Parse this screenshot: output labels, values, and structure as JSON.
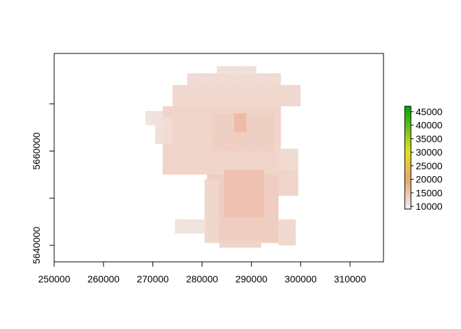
{
  "chart_data": {
    "type": "heatmap",
    "title": "",
    "xlabel": "",
    "ylabel": "",
    "xlim": [
      250000,
      316800
    ],
    "ylim": [
      5636500,
      5680700
    ],
    "x_ticks": [
      250000,
      260000,
      270000,
      280000,
      290000,
      300000,
      310000
    ],
    "x_tick_labels": [
      "250000",
      "260000",
      "270000",
      "280000",
      "290000",
      "300000",
      "310000"
    ],
    "y_ticks": [
      5640000,
      5650000,
      5660000,
      5670000
    ],
    "y_tick_labels": [
      "5640000",
      "",
      "5660000",
      ""
    ],
    "legend": {
      "position": "right",
      "min": 9000,
      "max": 47000,
      "ticks": [
        10000,
        15000,
        20000,
        25000,
        30000,
        35000,
        40000,
        45000
      ],
      "tick_labels": [
        "10000",
        "15000",
        "20000",
        "25000",
        "30000",
        "35000",
        "40000",
        "45000"
      ],
      "color_stops": [
        {
          "value": 9000,
          "color": "#f2f2f2"
        },
        {
          "value": 15000,
          "color": "#eec3b2"
        },
        {
          "value": 20000,
          "color": "#e9a86a"
        },
        {
          "value": 25000,
          "color": "#e6c24a"
        },
        {
          "value": 30000,
          "color": "#e3e31a"
        },
        {
          "value": 35000,
          "color": "#a8d11e"
        },
        {
          "value": 40000,
          "color": "#5ebe16"
        },
        {
          "value": 47000,
          "color": "#00a600"
        }
      ]
    },
    "raster_value_range_approx": [
      10000,
      20000
    ],
    "raster_extent": {
      "regions": [
        {
          "x": [
            274000,
            300000
          ],
          "y": [
            5669500,
            5674000
          ],
          "value": 12000
        },
        {
          "x": [
            277000,
            296000
          ],
          "y": [
            5674000,
            5676500
          ],
          "value": 11500
        },
        {
          "x": [
            283000,
            291000
          ],
          "y": [
            5676500,
            5678000
          ],
          "value": 11000
        },
        {
          "x": [
            272000,
            296000
          ],
          "y": [
            5655000,
            5669500
          ],
          "value": 12500
        },
        {
          "x": [
            270500,
            274000
          ],
          "y": [
            5661500,
            5667000
          ],
          "value": 11000
        },
        {
          "x": [
            268500,
            272000
          ],
          "y": [
            5665500,
            5668500
          ],
          "value": 10500
        },
        {
          "x": [
            295500,
            299500
          ],
          "y": [
            5656000,
            5660500
          ],
          "value": 11500
        },
        {
          "x": [
            281000,
            295500
          ],
          "y": [
            5640500,
            5655000
          ],
          "value": 13500
        },
        {
          "x": [
            295500,
            299500
          ],
          "y": [
            5650500,
            5656000
          ],
          "value": 12500
        },
        {
          "x": [
            295500,
            299000
          ],
          "y": [
            5640000,
            5645500
          ],
          "value": 12000
        },
        {
          "x": [
            274500,
            280500
          ],
          "y": [
            5642500,
            5645500
          ],
          "value": 10500
        },
        {
          "x": [
            280500,
            283500
          ],
          "y": [
            5640500,
            5654000
          ],
          "value": 12000
        },
        {
          "x": [
            283500,
            292000
          ],
          "y": [
            5639500,
            5641000
          ],
          "value": 12500
        },
        {
          "x": [
            282000,
            294500
          ],
          "y": [
            5660000,
            5668000
          ],
          "value": 13000
        },
        {
          "x": [
            284500,
            292500
          ],
          "y": [
            5646000,
            5656000
          ],
          "value": 15000
        },
        {
          "x": [
            286500,
            289000
          ],
          "y": [
            5664000,
            5668000
          ],
          "value": 16000
        }
      ]
    },
    "grid": false
  }
}
